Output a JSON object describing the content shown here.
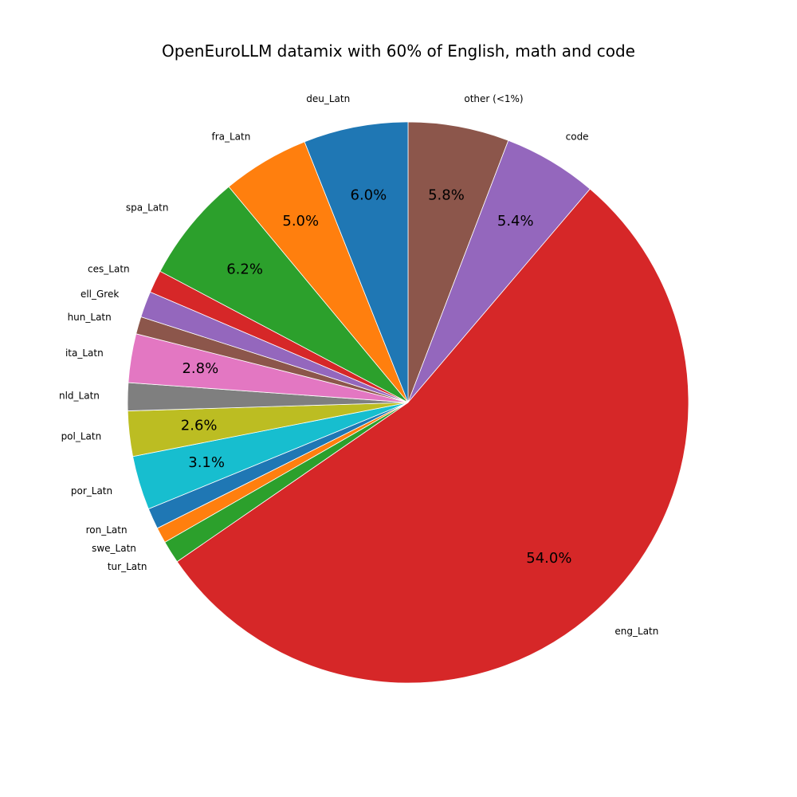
{
  "chart_data": {
    "type": "pie",
    "title": "OpenEuroLLM datamix with 60% of English, math and code",
    "slices": [
      {
        "label": "other (<1%)",
        "value": 5.8,
        "pct_label": "5.8%",
        "color": "#8c564b"
      },
      {
        "label": "code",
        "value": 5.4,
        "pct_label": "5.4%",
        "color": "#9467bd"
      },
      {
        "label": "eng_Latn",
        "value": 54.0,
        "pct_label": "54.0%",
        "color": "#d62728"
      },
      {
        "label": "tur_Latn",
        "value": 1.3,
        "pct_label": "",
        "color": "#2ca02c"
      },
      {
        "label": "swe_Latn",
        "value": 0.9,
        "pct_label": "",
        "color": "#ff7f0e"
      },
      {
        "label": "ron_Latn",
        "value": 1.2,
        "pct_label": "",
        "color": "#1f77b4"
      },
      {
        "label": "por_Latn",
        "value": 3.1,
        "pct_label": "3.1%",
        "color": "#17becf"
      },
      {
        "label": "pol_Latn",
        "value": 2.6,
        "pct_label": "2.6%",
        "color": "#bcbd22"
      },
      {
        "label": "nld_Latn",
        "value": 1.6,
        "pct_label": "",
        "color": "#7f7f7f"
      },
      {
        "label": "ita_Latn",
        "value": 2.8,
        "pct_label": "2.8%",
        "color": "#e377c2"
      },
      {
        "label": "hun_Latn",
        "value": 1.0,
        "pct_label": "",
        "color": "#8c564b"
      },
      {
        "label": "ell_Grek",
        "value": 1.5,
        "pct_label": "",
        "color": "#9467bd"
      },
      {
        "label": "ces_Latn",
        "value": 1.3,
        "pct_label": "",
        "color": "#d62728"
      },
      {
        "label": "spa_Latn",
        "value": 6.2,
        "pct_label": "6.2%",
        "color": "#2ca02c"
      },
      {
        "label": "fra_Latn",
        "value": 5.0,
        "pct_label": "5.0%",
        "color": "#ff7f0e"
      },
      {
        "label": "deu_Latn",
        "value": 6.0,
        "pct_label": "6.0%",
        "color": "#1f77b4"
      }
    ]
  }
}
